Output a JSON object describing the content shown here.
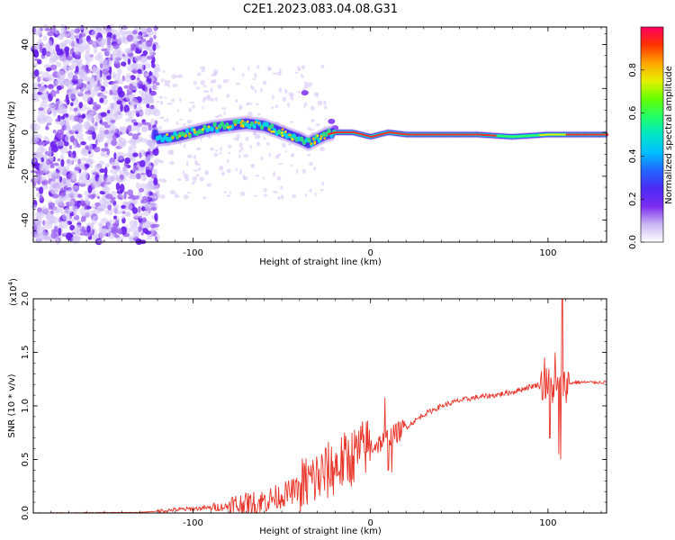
{
  "title": "C2E1.2023.083.04.08.G31",
  "chart_data": [
    {
      "type": "heatmap",
      "xlabel": "Height of straight line (km)",
      "ylabel": "Frequency (Hz)",
      "xlim": [
        -190,
        133
      ],
      "ylim": [
        -50,
        48
      ],
      "xticks": [
        -100,
        0,
        100
      ],
      "yticks": [
        -40,
        -20,
        0,
        20,
        40
      ],
      "colorbar": {
        "label": "Normalized spectral amplitude",
        "range": [
          0,
          1
        ],
        "ticks": [
          "0.0",
          "0.2",
          "0.4",
          "0.6",
          "0.8"
        ],
        "colors": [
          "#ffffff",
          "#c9b6f2",
          "#7b2cf0",
          "#4b2bf5",
          "#2266ff",
          "#00bfff",
          "#00e5c8",
          "#22ff66",
          "#66ff00",
          "#e6f000",
          "#ffa500",
          "#ff3300",
          "#ff0060"
        ]
      },
      "ridge": {
        "x": [
          -120,
          -110,
          -100,
          -90,
          -80,
          -70,
          -60,
          -50,
          -40,
          -35,
          -30,
          -25,
          -20,
          -10,
          0,
          10,
          20,
          40,
          60,
          80,
          100,
          110,
          133
        ],
        "y": [
          -3,
          -2,
          0,
          2,
          3,
          4,
          3,
          0,
          -3,
          -5,
          -3,
          -1,
          0,
          0,
          -2,
          0,
          -1,
          -1,
          -1,
          -2,
          -1,
          -1,
          -1
        ]
      },
      "noise_region_x": [
        -190,
        -120
      ],
      "isolated_blobs": [
        {
          "x": -37,
          "y": 18
        },
        {
          "x": -22,
          "y": 5
        },
        {
          "x": -20,
          "y": 2
        }
      ]
    },
    {
      "type": "line",
      "xlabel": "Height of straight line (km)",
      "ylabel": "SNR (10 * v/v)",
      "multiplier": "(x10",
      "multiplier_exp": "4",
      "multiplier_close": ")",
      "xlim": [
        -190,
        133
      ],
      "ylim": [
        0,
        2.0
      ],
      "xticks": [
        -100,
        0,
        100
      ],
      "yticks": [
        "0.0",
        "0.5",
        "1.0",
        "1.5",
        "2.0"
      ],
      "series": [
        {
          "color": "#e8362a",
          "trend_x": [
            -190,
            -130,
            -110,
            -90,
            -70,
            -60,
            -50,
            -40,
            -30,
            -20,
            -10,
            0,
            5,
            10,
            15,
            20,
            30,
            40,
            50,
            60,
            70,
            80,
            90,
            95,
            100,
            105,
            110,
            115,
            120,
            133
          ],
          "trend_y": [
            0.0,
            0.005,
            0.03,
            0.05,
            0.06,
            0.1,
            0.15,
            0.22,
            0.3,
            0.4,
            0.5,
            0.62,
            0.65,
            0.7,
            0.75,
            0.8,
            0.92,
            1.0,
            1.05,
            1.08,
            1.1,
            1.13,
            1.18,
            1.2,
            1.2,
            1.15,
            1.2,
            1.22,
            1.22,
            1.22
          ],
          "spikes": [
            {
              "x": 8,
              "y": 1.08
            },
            {
              "x": 10,
              "y": 0.4
            },
            {
              "x": 12,
              "y": 0.38
            },
            {
              "x": 98,
              "y": 1.45
            },
            {
              "x": 101,
              "y": 0.7
            },
            {
              "x": 104,
              "y": 1.5
            },
            {
              "x": 106,
              "y": 0.55
            },
            {
              "x": 108,
              "y": 2.0
            },
            {
              "x": 107,
              "y": 0.5
            }
          ]
        }
      ]
    }
  ]
}
